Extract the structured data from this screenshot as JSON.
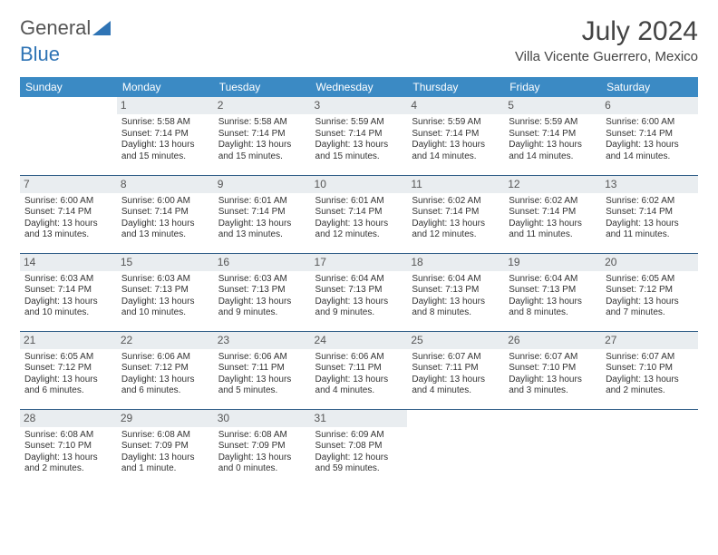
{
  "brand": {
    "part1": "General",
    "part2": "Blue"
  },
  "header": {
    "title": "July 2024",
    "location": "Villa Vicente Guerrero, Mexico"
  },
  "style": {
    "header_bg": "#3b8ac4",
    "header_fg": "#ffffff",
    "row_divider": "#2f5d87",
    "daynum_bg": "#e9edf0",
    "page_bg": "#ffffff",
    "text_color": "#333333",
    "title_fontsize": 30,
    "subtitle_fontsize": 15,
    "dayhead_fontsize": 12,
    "cell_fontsize": 10
  },
  "days_of_week": [
    "Sunday",
    "Monday",
    "Tuesday",
    "Wednesday",
    "Thursday",
    "Friday",
    "Saturday"
  ],
  "weeks": [
    [
      {
        "day": "",
        "sunrise": "",
        "sunset": "",
        "daylight": ""
      },
      {
        "day": "1",
        "sunrise": "Sunrise: 5:58 AM",
        "sunset": "Sunset: 7:14 PM",
        "daylight": "Daylight: 13 hours and 15 minutes."
      },
      {
        "day": "2",
        "sunrise": "Sunrise: 5:58 AM",
        "sunset": "Sunset: 7:14 PM",
        "daylight": "Daylight: 13 hours and 15 minutes."
      },
      {
        "day": "3",
        "sunrise": "Sunrise: 5:59 AM",
        "sunset": "Sunset: 7:14 PM",
        "daylight": "Daylight: 13 hours and 15 minutes."
      },
      {
        "day": "4",
        "sunrise": "Sunrise: 5:59 AM",
        "sunset": "Sunset: 7:14 PM",
        "daylight": "Daylight: 13 hours and 14 minutes."
      },
      {
        "day": "5",
        "sunrise": "Sunrise: 5:59 AM",
        "sunset": "Sunset: 7:14 PM",
        "daylight": "Daylight: 13 hours and 14 minutes."
      },
      {
        "day": "6",
        "sunrise": "Sunrise: 6:00 AM",
        "sunset": "Sunset: 7:14 PM",
        "daylight": "Daylight: 13 hours and 14 minutes."
      }
    ],
    [
      {
        "day": "7",
        "sunrise": "Sunrise: 6:00 AM",
        "sunset": "Sunset: 7:14 PM",
        "daylight": "Daylight: 13 hours and 13 minutes."
      },
      {
        "day": "8",
        "sunrise": "Sunrise: 6:00 AM",
        "sunset": "Sunset: 7:14 PM",
        "daylight": "Daylight: 13 hours and 13 minutes."
      },
      {
        "day": "9",
        "sunrise": "Sunrise: 6:01 AM",
        "sunset": "Sunset: 7:14 PM",
        "daylight": "Daylight: 13 hours and 13 minutes."
      },
      {
        "day": "10",
        "sunrise": "Sunrise: 6:01 AM",
        "sunset": "Sunset: 7:14 PM",
        "daylight": "Daylight: 13 hours and 12 minutes."
      },
      {
        "day": "11",
        "sunrise": "Sunrise: 6:02 AM",
        "sunset": "Sunset: 7:14 PM",
        "daylight": "Daylight: 13 hours and 12 minutes."
      },
      {
        "day": "12",
        "sunrise": "Sunrise: 6:02 AM",
        "sunset": "Sunset: 7:14 PM",
        "daylight": "Daylight: 13 hours and 11 minutes."
      },
      {
        "day": "13",
        "sunrise": "Sunrise: 6:02 AM",
        "sunset": "Sunset: 7:14 PM",
        "daylight": "Daylight: 13 hours and 11 minutes."
      }
    ],
    [
      {
        "day": "14",
        "sunrise": "Sunrise: 6:03 AM",
        "sunset": "Sunset: 7:14 PM",
        "daylight": "Daylight: 13 hours and 10 minutes."
      },
      {
        "day": "15",
        "sunrise": "Sunrise: 6:03 AM",
        "sunset": "Sunset: 7:13 PM",
        "daylight": "Daylight: 13 hours and 10 minutes."
      },
      {
        "day": "16",
        "sunrise": "Sunrise: 6:03 AM",
        "sunset": "Sunset: 7:13 PM",
        "daylight": "Daylight: 13 hours and 9 minutes."
      },
      {
        "day": "17",
        "sunrise": "Sunrise: 6:04 AM",
        "sunset": "Sunset: 7:13 PM",
        "daylight": "Daylight: 13 hours and 9 minutes."
      },
      {
        "day": "18",
        "sunrise": "Sunrise: 6:04 AM",
        "sunset": "Sunset: 7:13 PM",
        "daylight": "Daylight: 13 hours and 8 minutes."
      },
      {
        "day": "19",
        "sunrise": "Sunrise: 6:04 AM",
        "sunset": "Sunset: 7:13 PM",
        "daylight": "Daylight: 13 hours and 8 minutes."
      },
      {
        "day": "20",
        "sunrise": "Sunrise: 6:05 AM",
        "sunset": "Sunset: 7:12 PM",
        "daylight": "Daylight: 13 hours and 7 minutes."
      }
    ],
    [
      {
        "day": "21",
        "sunrise": "Sunrise: 6:05 AM",
        "sunset": "Sunset: 7:12 PM",
        "daylight": "Daylight: 13 hours and 6 minutes."
      },
      {
        "day": "22",
        "sunrise": "Sunrise: 6:06 AM",
        "sunset": "Sunset: 7:12 PM",
        "daylight": "Daylight: 13 hours and 6 minutes."
      },
      {
        "day": "23",
        "sunrise": "Sunrise: 6:06 AM",
        "sunset": "Sunset: 7:11 PM",
        "daylight": "Daylight: 13 hours and 5 minutes."
      },
      {
        "day": "24",
        "sunrise": "Sunrise: 6:06 AM",
        "sunset": "Sunset: 7:11 PM",
        "daylight": "Daylight: 13 hours and 4 minutes."
      },
      {
        "day": "25",
        "sunrise": "Sunrise: 6:07 AM",
        "sunset": "Sunset: 7:11 PM",
        "daylight": "Daylight: 13 hours and 4 minutes."
      },
      {
        "day": "26",
        "sunrise": "Sunrise: 6:07 AM",
        "sunset": "Sunset: 7:10 PM",
        "daylight": "Daylight: 13 hours and 3 minutes."
      },
      {
        "day": "27",
        "sunrise": "Sunrise: 6:07 AM",
        "sunset": "Sunset: 7:10 PM",
        "daylight": "Daylight: 13 hours and 2 minutes."
      }
    ],
    [
      {
        "day": "28",
        "sunrise": "Sunrise: 6:08 AM",
        "sunset": "Sunset: 7:10 PM",
        "daylight": "Daylight: 13 hours and 2 minutes."
      },
      {
        "day": "29",
        "sunrise": "Sunrise: 6:08 AM",
        "sunset": "Sunset: 7:09 PM",
        "daylight": "Daylight: 13 hours and 1 minute."
      },
      {
        "day": "30",
        "sunrise": "Sunrise: 6:08 AM",
        "sunset": "Sunset: 7:09 PM",
        "daylight": "Daylight: 13 hours and 0 minutes."
      },
      {
        "day": "31",
        "sunrise": "Sunrise: 6:09 AM",
        "sunset": "Sunset: 7:08 PM",
        "daylight": "Daylight: 12 hours and 59 minutes."
      },
      {
        "day": "",
        "sunrise": "",
        "sunset": "",
        "daylight": ""
      },
      {
        "day": "",
        "sunrise": "",
        "sunset": "",
        "daylight": ""
      },
      {
        "day": "",
        "sunrise": "",
        "sunset": "",
        "daylight": ""
      }
    ]
  ]
}
